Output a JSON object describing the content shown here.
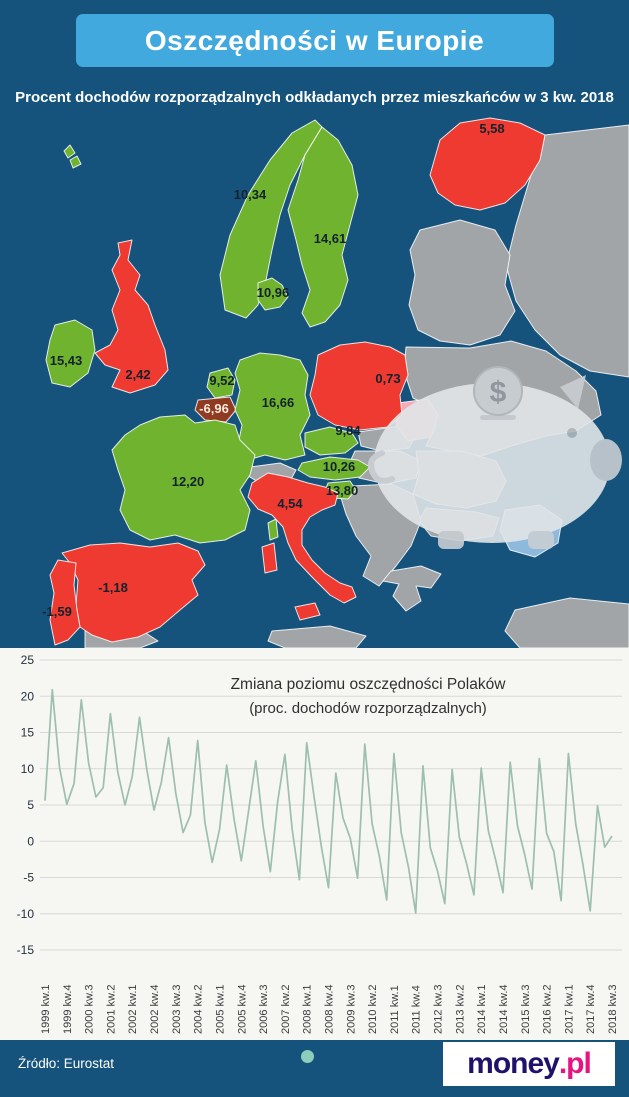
{
  "theme": {
    "bg-dark": "#15537c",
    "banner-blue": "#41a9dd",
    "chart-bg": "#f6f6f3",
    "map-green": "#6fb32e",
    "map-red": "#ee3a30",
    "map-darkred": "#913a22",
    "map-gray": "#a2a5a8",
    "map-pink": "#f5aab6",
    "map-lightblue": "#8cb9dc",
    "piggy": "#e2e6e9",
    "piggy-dark": "#c9ced3",
    "line-color": "#9dbfae",
    "grid-color": "#d8d8d8",
    "label-dark": "#14222e",
    "label-light": "#f6eedd",
    "text-white": "#ffffff",
    "logo-navy": "#20126b",
    "logo-pink": "#e61380",
    "dot-teal": "#8ecdbd"
  },
  "header": {
    "title": "Oszczędności w Europie",
    "subtitle": "Procent dochodów rozporządzalnych odkładanych przez mieszkańców w 3 kw. 2018"
  },
  "map": {
    "countries": [
      {
        "name": "Finlandia",
        "value": "5,58",
        "color": "#ee3a30"
      },
      {
        "name": "Norwegia",
        "value": "10,34",
        "color": "#6fb32e"
      },
      {
        "name": "Szwecja",
        "value": "14,61",
        "color": "#6fb32e"
      },
      {
        "name": "Dania",
        "value": "10,96",
        "color": "#6fb32e"
      },
      {
        "name": "Irlandia",
        "value": "15,43",
        "color": "#6fb32e"
      },
      {
        "name": "Wielka Brytania",
        "value": "2,42",
        "color": "#ee3a30"
      },
      {
        "name": "Holandia",
        "value": "9,52",
        "color": "#6fb32e"
      },
      {
        "name": "Belgia",
        "value": "-6,96",
        "color": "#913a22"
      },
      {
        "name": "Niemcy",
        "value": "16,66",
        "color": "#6fb32e"
      },
      {
        "name": "Polska",
        "value": "0,73",
        "color": "#ee3a30"
      },
      {
        "name": "Czechy",
        "value": "9,84",
        "color": "#6fb32e"
      },
      {
        "name": "Austria",
        "value": "10,26",
        "color": "#6fb32e"
      },
      {
        "name": "Słowenia",
        "value": "13,80",
        "color": "#6fb32e"
      },
      {
        "name": "Francja",
        "value": "12,20",
        "color": "#6fb32e"
      },
      {
        "name": "Włochy",
        "value": "4,54",
        "color": "#ee3a30"
      },
      {
        "name": "Hiszpania",
        "value": "-1,18",
        "color": "#ee3a30"
      },
      {
        "name": "Portugalia",
        "value": "-1,59",
        "color": "#ee3a30"
      }
    ]
  },
  "chart_data": {
    "type": "line",
    "title": "Zmiana poziomu oszczędności Polaków",
    "subtitle": "(proc. dochodów rozporządzalnych)",
    "ylim": [
      -15,
      25
    ],
    "yticks": [
      25,
      20,
      15,
      10,
      5,
      0,
      -5,
      -10,
      -15
    ],
    "grid": true,
    "legend": "none",
    "x_tick_step": 3,
    "x_tick_labels": [
      "1999 kw.1",
      "1999 kw.4",
      "2000 kw.3",
      "2001 kw.2",
      "2002 kw.1",
      "2002 kw.4",
      "2003 kw.3",
      "2004 kw.2",
      "2005 kw.1",
      "2005 kw.4",
      "2006 kw.3",
      "2007 kw.2",
      "2008 kw.1",
      "2008 kw.4",
      "2009 kw.3",
      "2010 kw.2",
      "2011 kw.1",
      "2011 kw.4",
      "2012 kw.3",
      "2013 kw.2",
      "2014 kw.1",
      "2014 kw.4",
      "2015 kw.3",
      "2016 kw.2",
      "2017 kw.1",
      "2017 kw.4",
      "2018 kw.3"
    ],
    "values": [
      5.6,
      20.9,
      10.2,
      5.1,
      8.0,
      19.5,
      10.8,
      6.1,
      7.4,
      17.6,
      9.6,
      5.0,
      8.9,
      17.1,
      9.9,
      4.3,
      8.1,
      14.3,
      6.6,
      1.2,
      3.6,
      13.9,
      2.6,
      -2.9,
      1.6,
      10.5,
      3.1,
      -2.7,
      4.1,
      11.1,
      2.1,
      -4.2,
      5.4,
      12.0,
      1.6,
      -5.3,
      13.6,
      6.2,
      -0.6,
      -6.4,
      9.4,
      3.2,
      0.4,
      -5.1,
      13.4,
      2.4,
      -2.1,
      -8.1,
      12.1,
      1.2,
      -3.6,
      -9.9,
      10.4,
      -0.9,
      -4.1,
      -8.6,
      9.9,
      0.6,
      -3.1,
      -7.4,
      10.1,
      1.4,
      -2.6,
      -7.1,
      10.9,
      2.1,
      -1.9,
      -6.6,
      11.4,
      1.1,
      -1.4,
      -8.2,
      12.1,
      2.4,
      -3.2,
      -9.6,
      4.9,
      -0.8,
      0.73
    ]
  },
  "footer": {
    "source": "Źródło: Eurostat",
    "logo_money": "money",
    "logo_pl": ".pl"
  }
}
